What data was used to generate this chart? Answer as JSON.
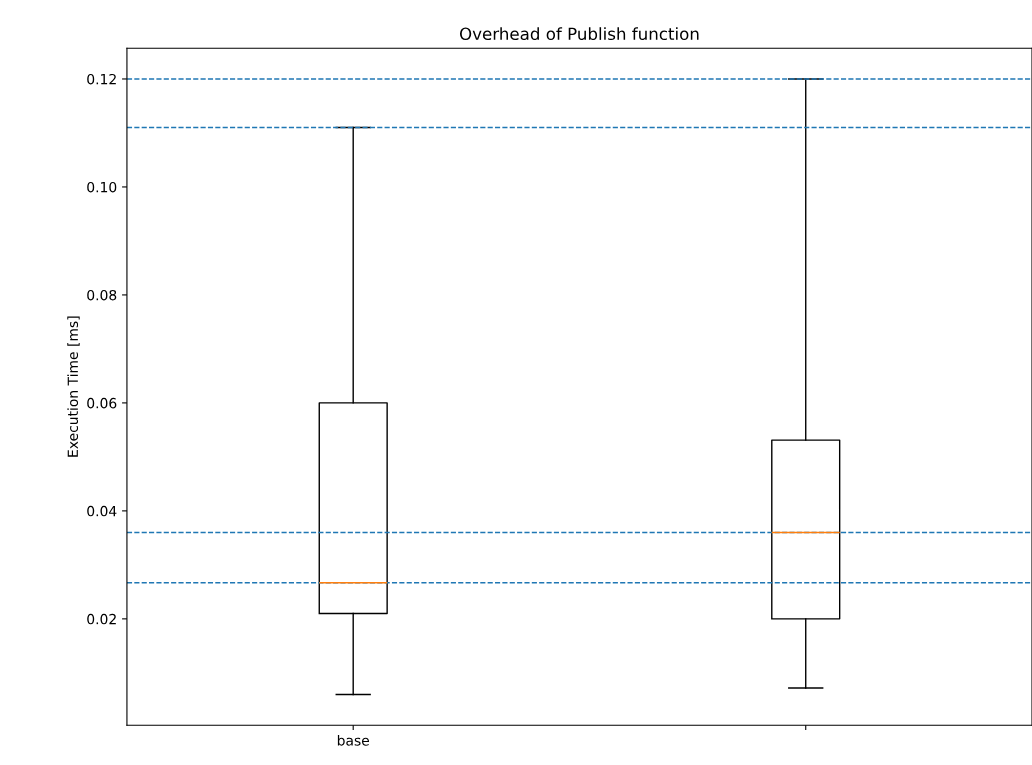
{
  "chart_data": {
    "type": "box",
    "title": "Overhead of Publish function",
    "ylabel": "Execution Time [ms]",
    "categories": [
      "base",
      null
    ],
    "boxes": [
      {
        "low": 0.006,
        "q1": 0.021,
        "median": 0.0267,
        "q3": 0.06,
        "high": 0.111
      },
      {
        "low": 0.0072,
        "q1": 0.02,
        "median": 0.036,
        "q3": 0.0531,
        "high": 0.12
      }
    ],
    "ylim": [
      0.0003,
      0.1257
    ],
    "yticks": [
      {
        "value": 0.02,
        "label": "0.02"
      },
      {
        "value": 0.04,
        "label": "0.04"
      },
      {
        "value": 0.06,
        "label": "0.06"
      },
      {
        "value": 0.08,
        "label": "0.08"
      },
      {
        "value": 0.1,
        "label": "0.10"
      },
      {
        "value": 0.12,
        "label": "0.12"
      }
    ],
    "ref_lines": [
      {
        "axis": "y",
        "value": 0.12,
        "color": "#1f77b4",
        "line_style": "dashed"
      },
      {
        "axis": "y",
        "value": 0.111,
        "color": "#1f77b4",
        "line_style": "dashed"
      },
      {
        "axis": "y",
        "value": 0.036,
        "color": "#1f77b4",
        "line_style": "dashed"
      },
      {
        "axis": "y",
        "value": 0.0267,
        "color": "#1f77b4",
        "line_style": "dashed"
      }
    ],
    "grid": false
  }
}
